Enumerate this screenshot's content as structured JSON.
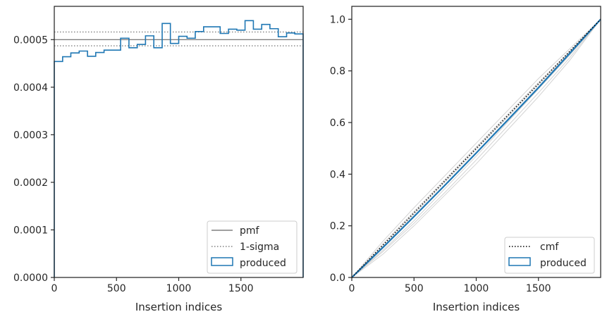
{
  "chart_data": [
    {
      "type": "line",
      "xlabel": "Insertion indices",
      "ylabel": "",
      "xlim": [
        0,
        2000
      ],
      "ylim": [
        0,
        0.00057
      ],
      "xticks": [
        0,
        500,
        1000,
        1500
      ],
      "xtick_labels": [
        "0",
        "500",
        "1000",
        "1500"
      ],
      "yticks": [
        0,
        0.0001,
        0.0002,
        0.0003,
        0.0004,
        0.0005
      ],
      "ytick_labels": [
        "0.0000",
        "0.0001",
        "0.0002",
        "0.0003",
        "0.0004",
        "0.0005"
      ],
      "grid": false,
      "legend_position": "lower-right",
      "hlines": [
        {
          "name": "pmf",
          "y": 0.0005,
          "style": "solid",
          "color": "#808080"
        },
        {
          "name": "1-sigma",
          "y": 0.000516,
          "style": "dotted",
          "color": "#808080"
        },
        {
          "name": "1-sigma",
          "y": 0.000487,
          "style": "dotted",
          "color": "#808080"
        }
      ],
      "series": [
        {
          "name": "produced",
          "kind": "step-histogram",
          "color": "#1f77b4",
          "bin_edges": [
            0,
            67,
            133,
            200,
            267,
            333,
            400,
            467,
            533,
            600,
            667,
            733,
            800,
            867,
            933,
            1000,
            1067,
            1133,
            1200,
            1267,
            1333,
            1400,
            1467,
            1533,
            1600,
            1667,
            1733,
            1800,
            1867,
            1933,
            2000
          ],
          "values": [
            0.000454,
            0.000464,
            0.000472,
            0.000476,
            0.000465,
            0.000473,
            0.000478,
            0.000478,
            0.000503,
            0.000483,
            0.00049,
            0.000508,
            0.000483,
            0.000534,
            0.000492,
            0.000507,
            0.000503,
            0.000517,
            0.000527,
            0.000527,
            0.000513,
            0.000522,
            0.00052,
            0.00054,
            0.000522,
            0.000532,
            0.000523,
            0.000506,
            0.000514,
            0.000512
          ]
        }
      ],
      "legend": [
        "pmf",
        "1-sigma",
        "produced"
      ]
    },
    {
      "type": "line",
      "xlabel": "Insertion indices",
      "ylabel": "",
      "xlim": [
        0,
        2000
      ],
      "ylim": [
        0,
        1.05
      ],
      "xticks": [
        0,
        500,
        1000,
        1500
      ],
      "xtick_labels": [
        "0",
        "500",
        "1000",
        "1500"
      ],
      "yticks": [
        0,
        0.2,
        0.4,
        0.6,
        0.8,
        1.0
      ],
      "ytick_labels": [
        "0.0",
        "0.2",
        "0.4",
        "0.6",
        "0.8",
        "1.0"
      ],
      "grid": false,
      "legend_position": "lower-right",
      "series": [
        {
          "name": "cmf",
          "style": "dotted",
          "color": "#000000",
          "x": [
            0,
            2000
          ],
          "y": [
            0,
            1
          ]
        },
        {
          "name": "produced",
          "color": "#1f77b4",
          "x": [
            0,
            250,
            500,
            750,
            1000,
            1250,
            1500,
            1750,
            2000
          ],
          "y": [
            0,
            0.116,
            0.236,
            0.358,
            0.482,
            0.608,
            0.735,
            0.867,
            1.0
          ]
        }
      ],
      "background_curves": {
        "color": "#d3d3d3",
        "x": [
          0,
          250,
          500,
          750,
          1000,
          1250,
          1500,
          1750,
          2000
        ],
        "curves": [
          [
            0,
            0.09,
            0.2,
            0.32,
            0.44,
            0.57,
            0.7,
            0.84,
            1.0
          ],
          [
            0,
            0.1,
            0.21,
            0.33,
            0.455,
            0.585,
            0.715,
            0.85,
            1.0
          ],
          [
            0,
            0.105,
            0.22,
            0.345,
            0.47,
            0.6,
            0.73,
            0.86,
            1.0
          ],
          [
            0,
            0.12,
            0.245,
            0.37,
            0.495,
            0.62,
            0.745,
            0.87,
            1.0
          ],
          [
            0,
            0.13,
            0.255,
            0.38,
            0.505,
            0.63,
            0.755,
            0.875,
            1.0
          ],
          [
            0,
            0.14,
            0.27,
            0.395,
            0.52,
            0.645,
            0.77,
            0.885,
            1.0
          ]
        ]
      },
      "legend": [
        "cmf",
        "produced"
      ]
    }
  ]
}
